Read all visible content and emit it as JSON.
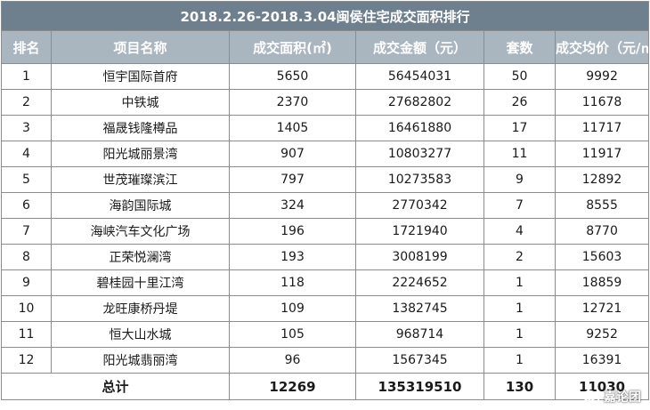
{
  "title": "2018.2.26-2018.3.04闽侯住宅成交面积排行",
  "headers": [
    "排名",
    "项目名称",
    "成交面积(㎡)",
    "成交金额（元）",
    "套数",
    "成交均价（元/㎡）"
  ],
  "rows": [
    [
      "1",
      "恒宇国际首府",
      "5650",
      "56454031",
      "50",
      "9992"
    ],
    [
      "2",
      "中铁城",
      "2370",
      "27682802",
      "26",
      "11678"
    ],
    [
      "3",
      "福晟钱隆樽品",
      "1405",
      "16461880",
      "17",
      "11717"
    ],
    [
      "4",
      "阳光城丽景湾",
      "907",
      "10803277",
      "11",
      "11917"
    ],
    [
      "5",
      "世茂璀璨滨江",
      "797",
      "10273583",
      "9",
      "12892"
    ],
    [
      "6",
      "海韵国际城",
      "324",
      "2770342",
      "7",
      "8555"
    ],
    [
      "7",
      "海峡汽车文化广场",
      "196",
      "1721940",
      "4",
      "8770"
    ],
    [
      "8",
      "正荣悦澜湾",
      "193",
      "3008199",
      "2",
      "15603"
    ],
    [
      "9",
      "碧桂园十里江湾",
      "118",
      "2224652",
      "1",
      "18859"
    ],
    [
      "10",
      "龙旺康桥丹堤",
      "109",
      "1382745",
      "1",
      "12721"
    ],
    [
      "11",
      "恒大山水城",
      "105",
      "968714",
      "1",
      "9252"
    ],
    [
      "12",
      "阳光城翡丽湾",
      "96",
      "1567345",
      "1",
      "16391"
    ]
  ],
  "total": {
    "label": "总计",
    "area": "12269",
    "amount": "135319510",
    "units": "130",
    "avg_price": "11030"
  },
  "watermark": {
    "icon": "wechat-icon",
    "text": "嘉论团"
  }
}
